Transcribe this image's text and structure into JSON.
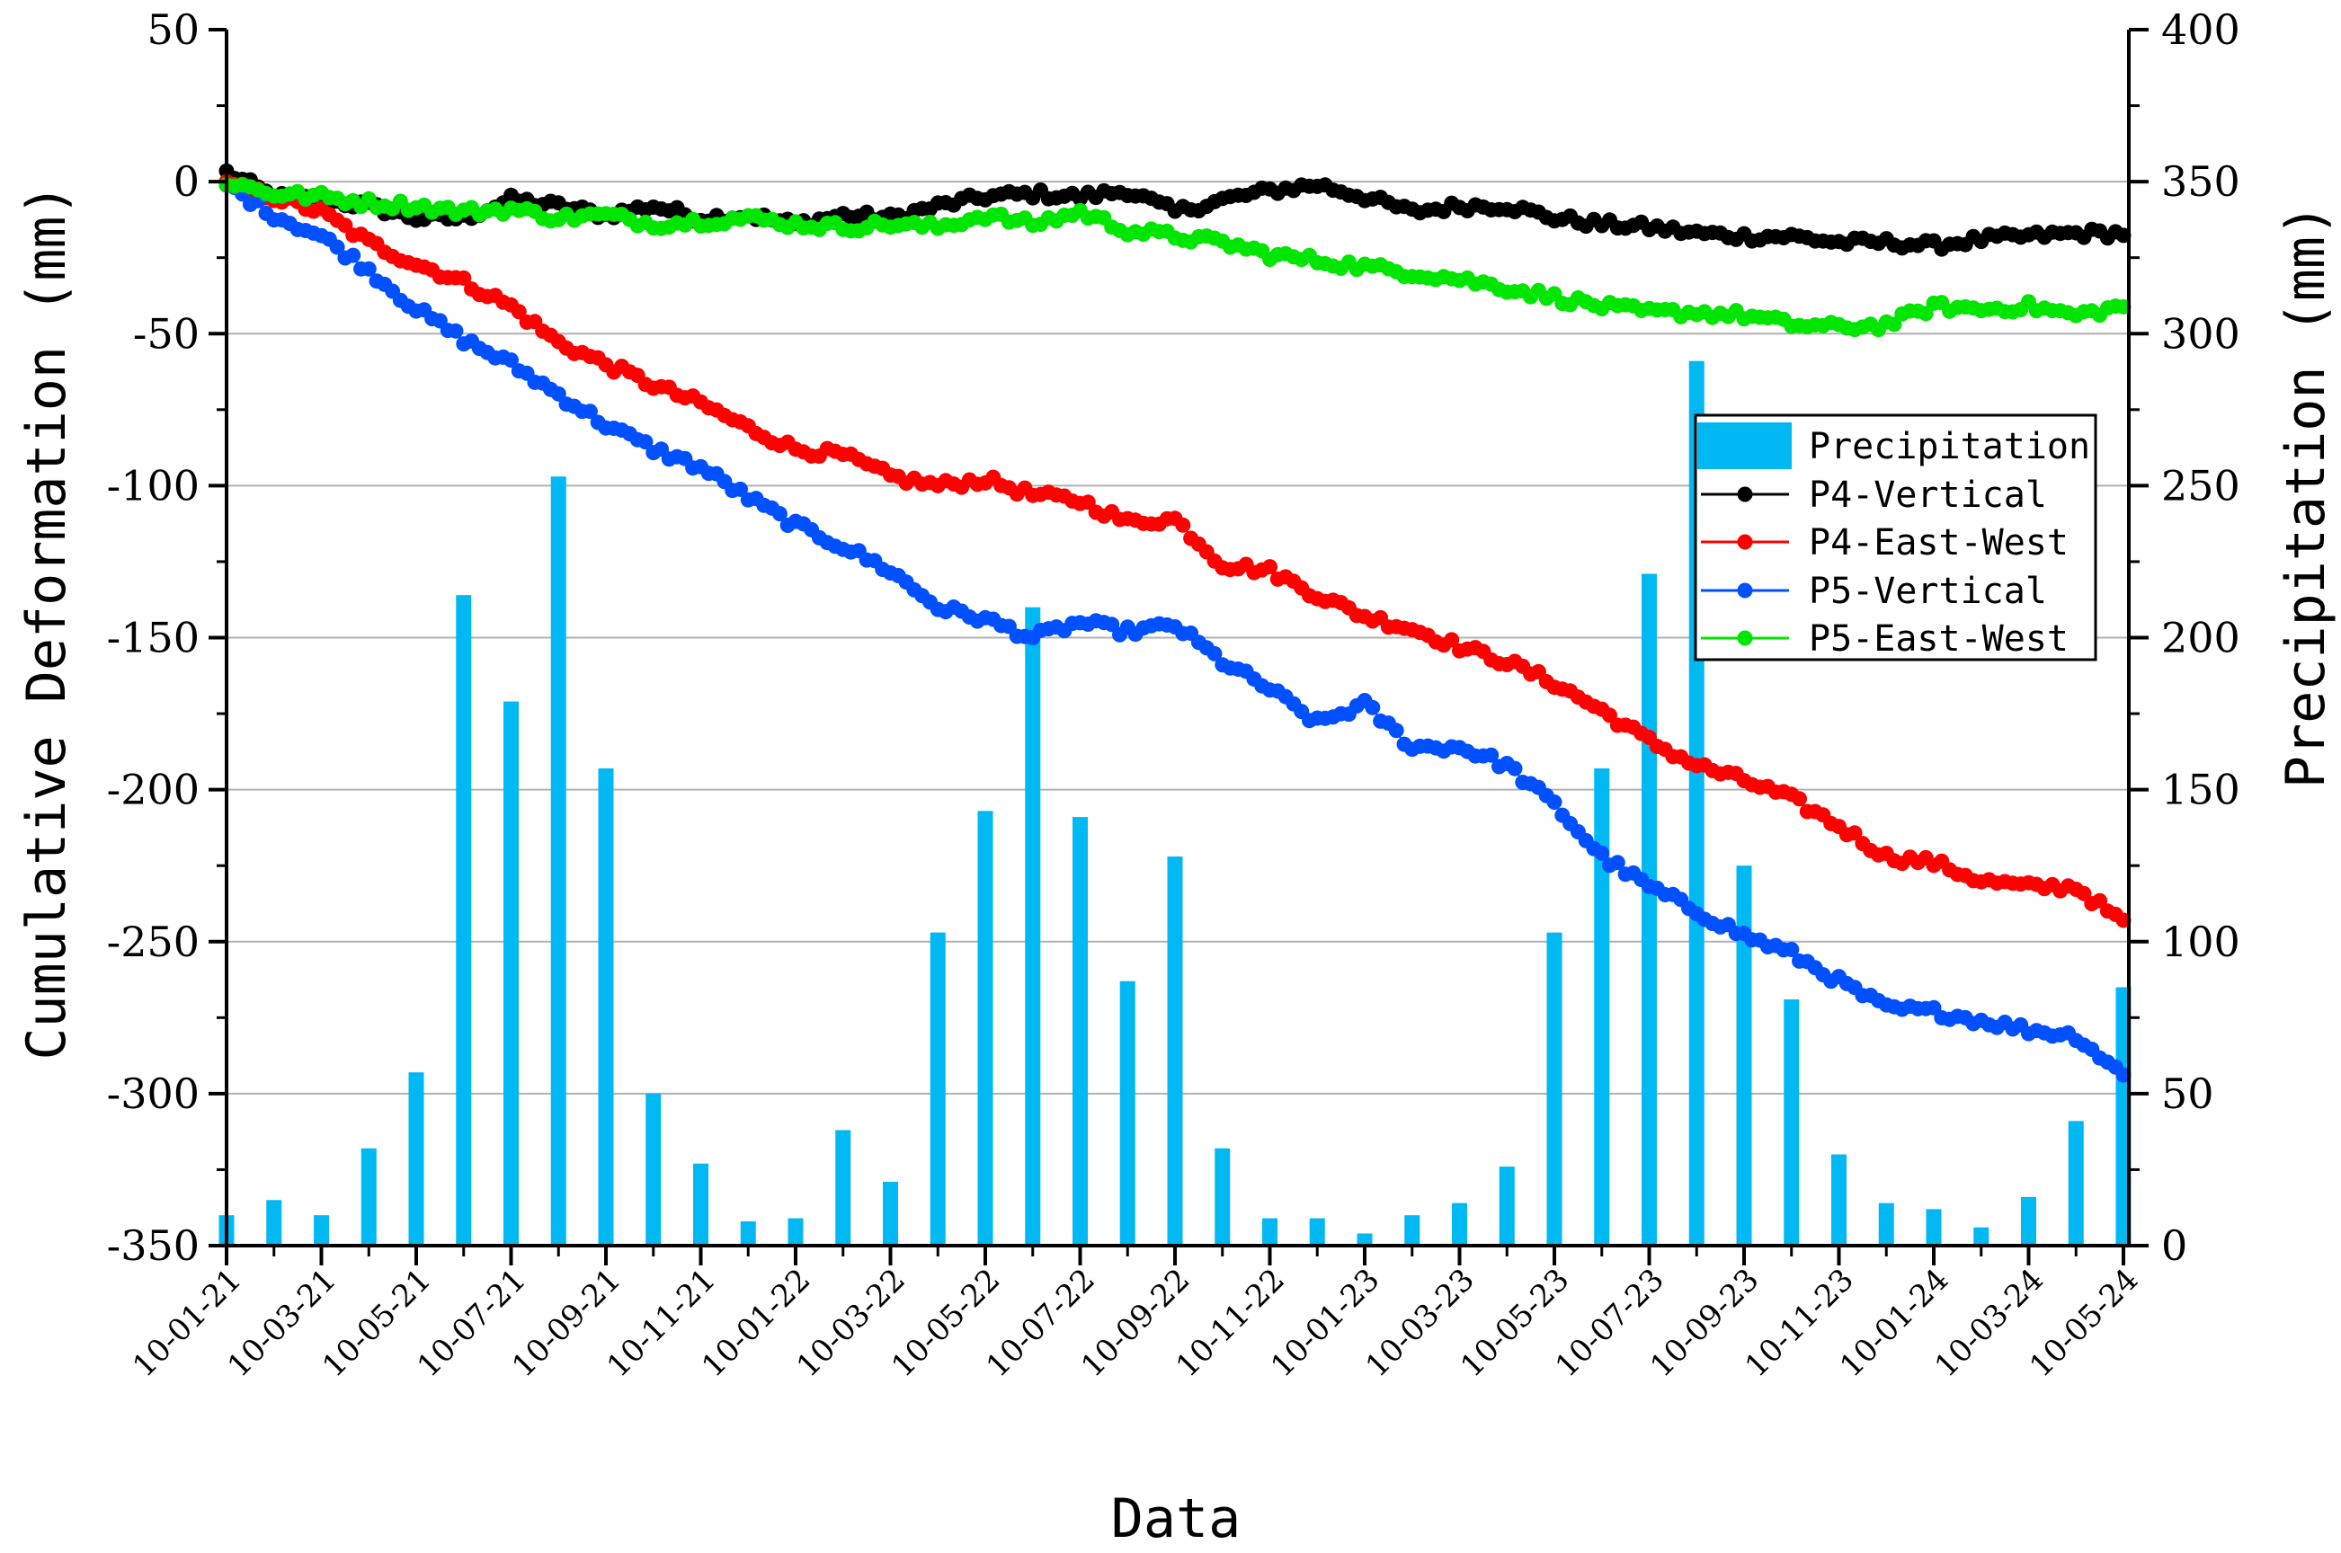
{
  "chart_data": {
    "type": "bar+scatter",
    "xlabel": "Data",
    "ylabel_left": "Cumulative Deformation (mm)",
    "ylabel_right": "Precipitation (mm)",
    "ylim_left": [
      -350,
      50
    ],
    "ylim_right": [
      0,
      400
    ],
    "yticks_left": [
      "50",
      "0",
      "-50",
      "-100",
      "-150",
      "-200",
      "-250",
      "-300",
      "-350"
    ],
    "yticks_right": [
      "400",
      "350",
      "300",
      "250",
      "200",
      "150",
      "100",
      "50",
      "0"
    ],
    "x_ticks": [
      "10-01-21",
      "10-03-21",
      "10-05-21",
      "10-07-21",
      "10-09-21",
      "10-11-21",
      "10-01-22",
      "10-03-22",
      "10-05-22",
      "10-07-22",
      "10-09-22",
      "10-11-22",
      "10-01-23",
      "10-03-23",
      "10-05-23",
      "10-07-23",
      "10-09-23",
      "10-11-23",
      "10-01-24",
      "10-03-24",
      "10-05-24"
    ],
    "months_count": 41,
    "precipitation": {
      "name": "Precipitation",
      "color": "#00b8f2",
      "values": [
        10,
        15,
        10,
        32,
        57,
        214,
        179,
        253,
        157,
        50,
        27,
        8,
        9,
        38,
        21,
        103,
        143,
        210,
        141,
        87,
        128,
        32,
        9,
        9,
        4,
        10,
        14,
        26,
        103,
        157,
        221,
        291,
        125,
        81,
        30,
        14,
        12,
        6,
        16,
        41,
        85
      ]
    },
    "series": [
      {
        "name": "P4-Vertical",
        "color": "#000000",
        "anchors": [
          [
            0,
            3
          ],
          [
            1,
            -5
          ],
          [
            2,
            -6
          ],
          [
            3,
            -8
          ],
          [
            4,
            -12
          ],
          [
            5,
            -12
          ],
          [
            6,
            -6
          ],
          [
            7,
            -8
          ],
          [
            8,
            -11
          ],
          [
            9,
            -8
          ],
          [
            10,
            -12
          ],
          [
            11,
            -11
          ],
          [
            12,
            -14
          ],
          [
            13,
            -11
          ],
          [
            14,
            -12
          ],
          [
            15,
            -8
          ],
          [
            16,
            -5
          ],
          [
            17,
            -4
          ],
          [
            18,
            -5
          ],
          [
            19,
            -3
          ],
          [
            20,
            -10
          ],
          [
            21,
            -6
          ],
          [
            22,
            -3
          ],
          [
            23,
            -1
          ],
          [
            24,
            -5
          ],
          [
            25,
            -10
          ],
          [
            26,
            -8
          ],
          [
            27,
            -8
          ],
          [
            28,
            -12
          ],
          [
            29,
            -14
          ],
          [
            30,
            -15
          ],
          [
            31,
            -17
          ],
          [
            32,
            -18
          ],
          [
            33,
            -18
          ],
          [
            34,
            -20
          ],
          [
            35,
            -20
          ],
          [
            36,
            -21
          ],
          [
            37,
            -19
          ],
          [
            38,
            -18
          ],
          [
            39,
            -17
          ],
          [
            40,
            -17
          ]
        ]
      },
      {
        "name": "P4-East-West",
        "color": "#ff0000",
        "anchors": [
          [
            0,
            -1
          ],
          [
            1,
            -5
          ],
          [
            2,
            -10
          ],
          [
            3,
            -20
          ],
          [
            4,
            -27
          ],
          [
            5,
            -33
          ],
          [
            6,
            -41
          ],
          [
            7,
            -53
          ],
          [
            8,
            -60
          ],
          [
            9,
            -67
          ],
          [
            10,
            -73
          ],
          [
            11,
            -81
          ],
          [
            12,
            -88
          ],
          [
            13,
            -90
          ],
          [
            14,
            -97
          ],
          [
            15,
            -100
          ],
          [
            16,
            -98
          ],
          [
            17,
            -103
          ],
          [
            18,
            -105
          ],
          [
            19,
            -112
          ],
          [
            20,
            -111
          ],
          [
            21,
            -126
          ],
          [
            22,
            -128
          ],
          [
            23,
            -136
          ],
          [
            24,
            -143
          ],
          [
            25,
            -147
          ],
          [
            26,
            -153
          ],
          [
            27,
            -158
          ],
          [
            28,
            -165
          ],
          [
            29,
            -174
          ],
          [
            30,
            -184
          ],
          [
            31,
            -192
          ],
          [
            32,
            -197
          ],
          [
            33,
            -203
          ],
          [
            34,
            -212
          ],
          [
            35,
            -222
          ],
          [
            36,
            -224
          ],
          [
            37,
            -230
          ],
          [
            38,
            -232
          ],
          [
            39,
            -232
          ],
          [
            40,
            -244
          ]
        ]
      },
      {
        "name": "P5-Vertical",
        "color": "#0050ff",
        "anchors": [
          [
            0,
            -1
          ],
          [
            1,
            -11
          ],
          [
            2,
            -18
          ],
          [
            3,
            -29
          ],
          [
            4,
            -42
          ],
          [
            5,
            -52
          ],
          [
            6,
            -60
          ],
          [
            7,
            -70
          ],
          [
            8,
            -80
          ],
          [
            9,
            -88
          ],
          [
            10,
            -94
          ],
          [
            11,
            -104
          ],
          [
            12,
            -113
          ],
          [
            13,
            -120
          ],
          [
            14,
            -128
          ],
          [
            15,
            -140
          ],
          [
            16,
            -144
          ],
          [
            17,
            -150
          ],
          [
            18,
            -145
          ],
          [
            19,
            -148
          ],
          [
            20,
            -146
          ],
          [
            21,
            -158
          ],
          [
            22,
            -167
          ],
          [
            23,
            -178
          ],
          [
            24,
            -172
          ],
          [
            25,
            -186
          ],
          [
            26,
            -186
          ],
          [
            27,
            -192
          ],
          [
            28,
            -205
          ],
          [
            29,
            -222
          ],
          [
            30,
            -232
          ],
          [
            31,
            -240
          ],
          [
            32,
            -248
          ],
          [
            33,
            -254
          ],
          [
            34,
            -263
          ],
          [
            35,
            -272
          ],
          [
            36,
            -273
          ],
          [
            37,
            -276
          ],
          [
            38,
            -279
          ],
          [
            39,
            -281
          ],
          [
            40,
            -294
          ]
        ]
      },
      {
        "name": "P5-East-West",
        "color": "#00e600",
        "anchors": [
          [
            0,
            0
          ],
          [
            1,
            -4
          ],
          [
            2,
            -5
          ],
          [
            3,
            -7
          ],
          [
            4,
            -8
          ],
          [
            5,
            -10
          ],
          [
            6,
            -9
          ],
          [
            7,
            -12
          ],
          [
            8,
            -11
          ],
          [
            9,
            -14
          ],
          [
            10,
            -13
          ],
          [
            11,
            -12
          ],
          [
            12,
            -14
          ],
          [
            13,
            -15
          ],
          [
            14,
            -14
          ],
          [
            15,
            -15
          ],
          [
            16,
            -11
          ],
          [
            17,
            -14
          ],
          [
            18,
            -10
          ],
          [
            19,
            -16
          ],
          [
            20,
            -18
          ],
          [
            21,
            -20
          ],
          [
            22,
            -24
          ],
          [
            23,
            -26
          ],
          [
            24,
            -28
          ],
          [
            25,
            -30
          ],
          [
            26,
            -32
          ],
          [
            27,
            -35
          ],
          [
            28,
            -38
          ],
          [
            29,
            -41
          ],
          [
            30,
            -43
          ],
          [
            31,
            -43
          ],
          [
            32,
            -44
          ],
          [
            33,
            -47
          ],
          [
            34,
            -48
          ],
          [
            35,
            -47
          ],
          [
            36,
            -41
          ],
          [
            37,
            -42
          ],
          [
            38,
            -41
          ],
          [
            39,
            -44
          ],
          [
            40,
            -41
          ]
        ]
      }
    ]
  }
}
